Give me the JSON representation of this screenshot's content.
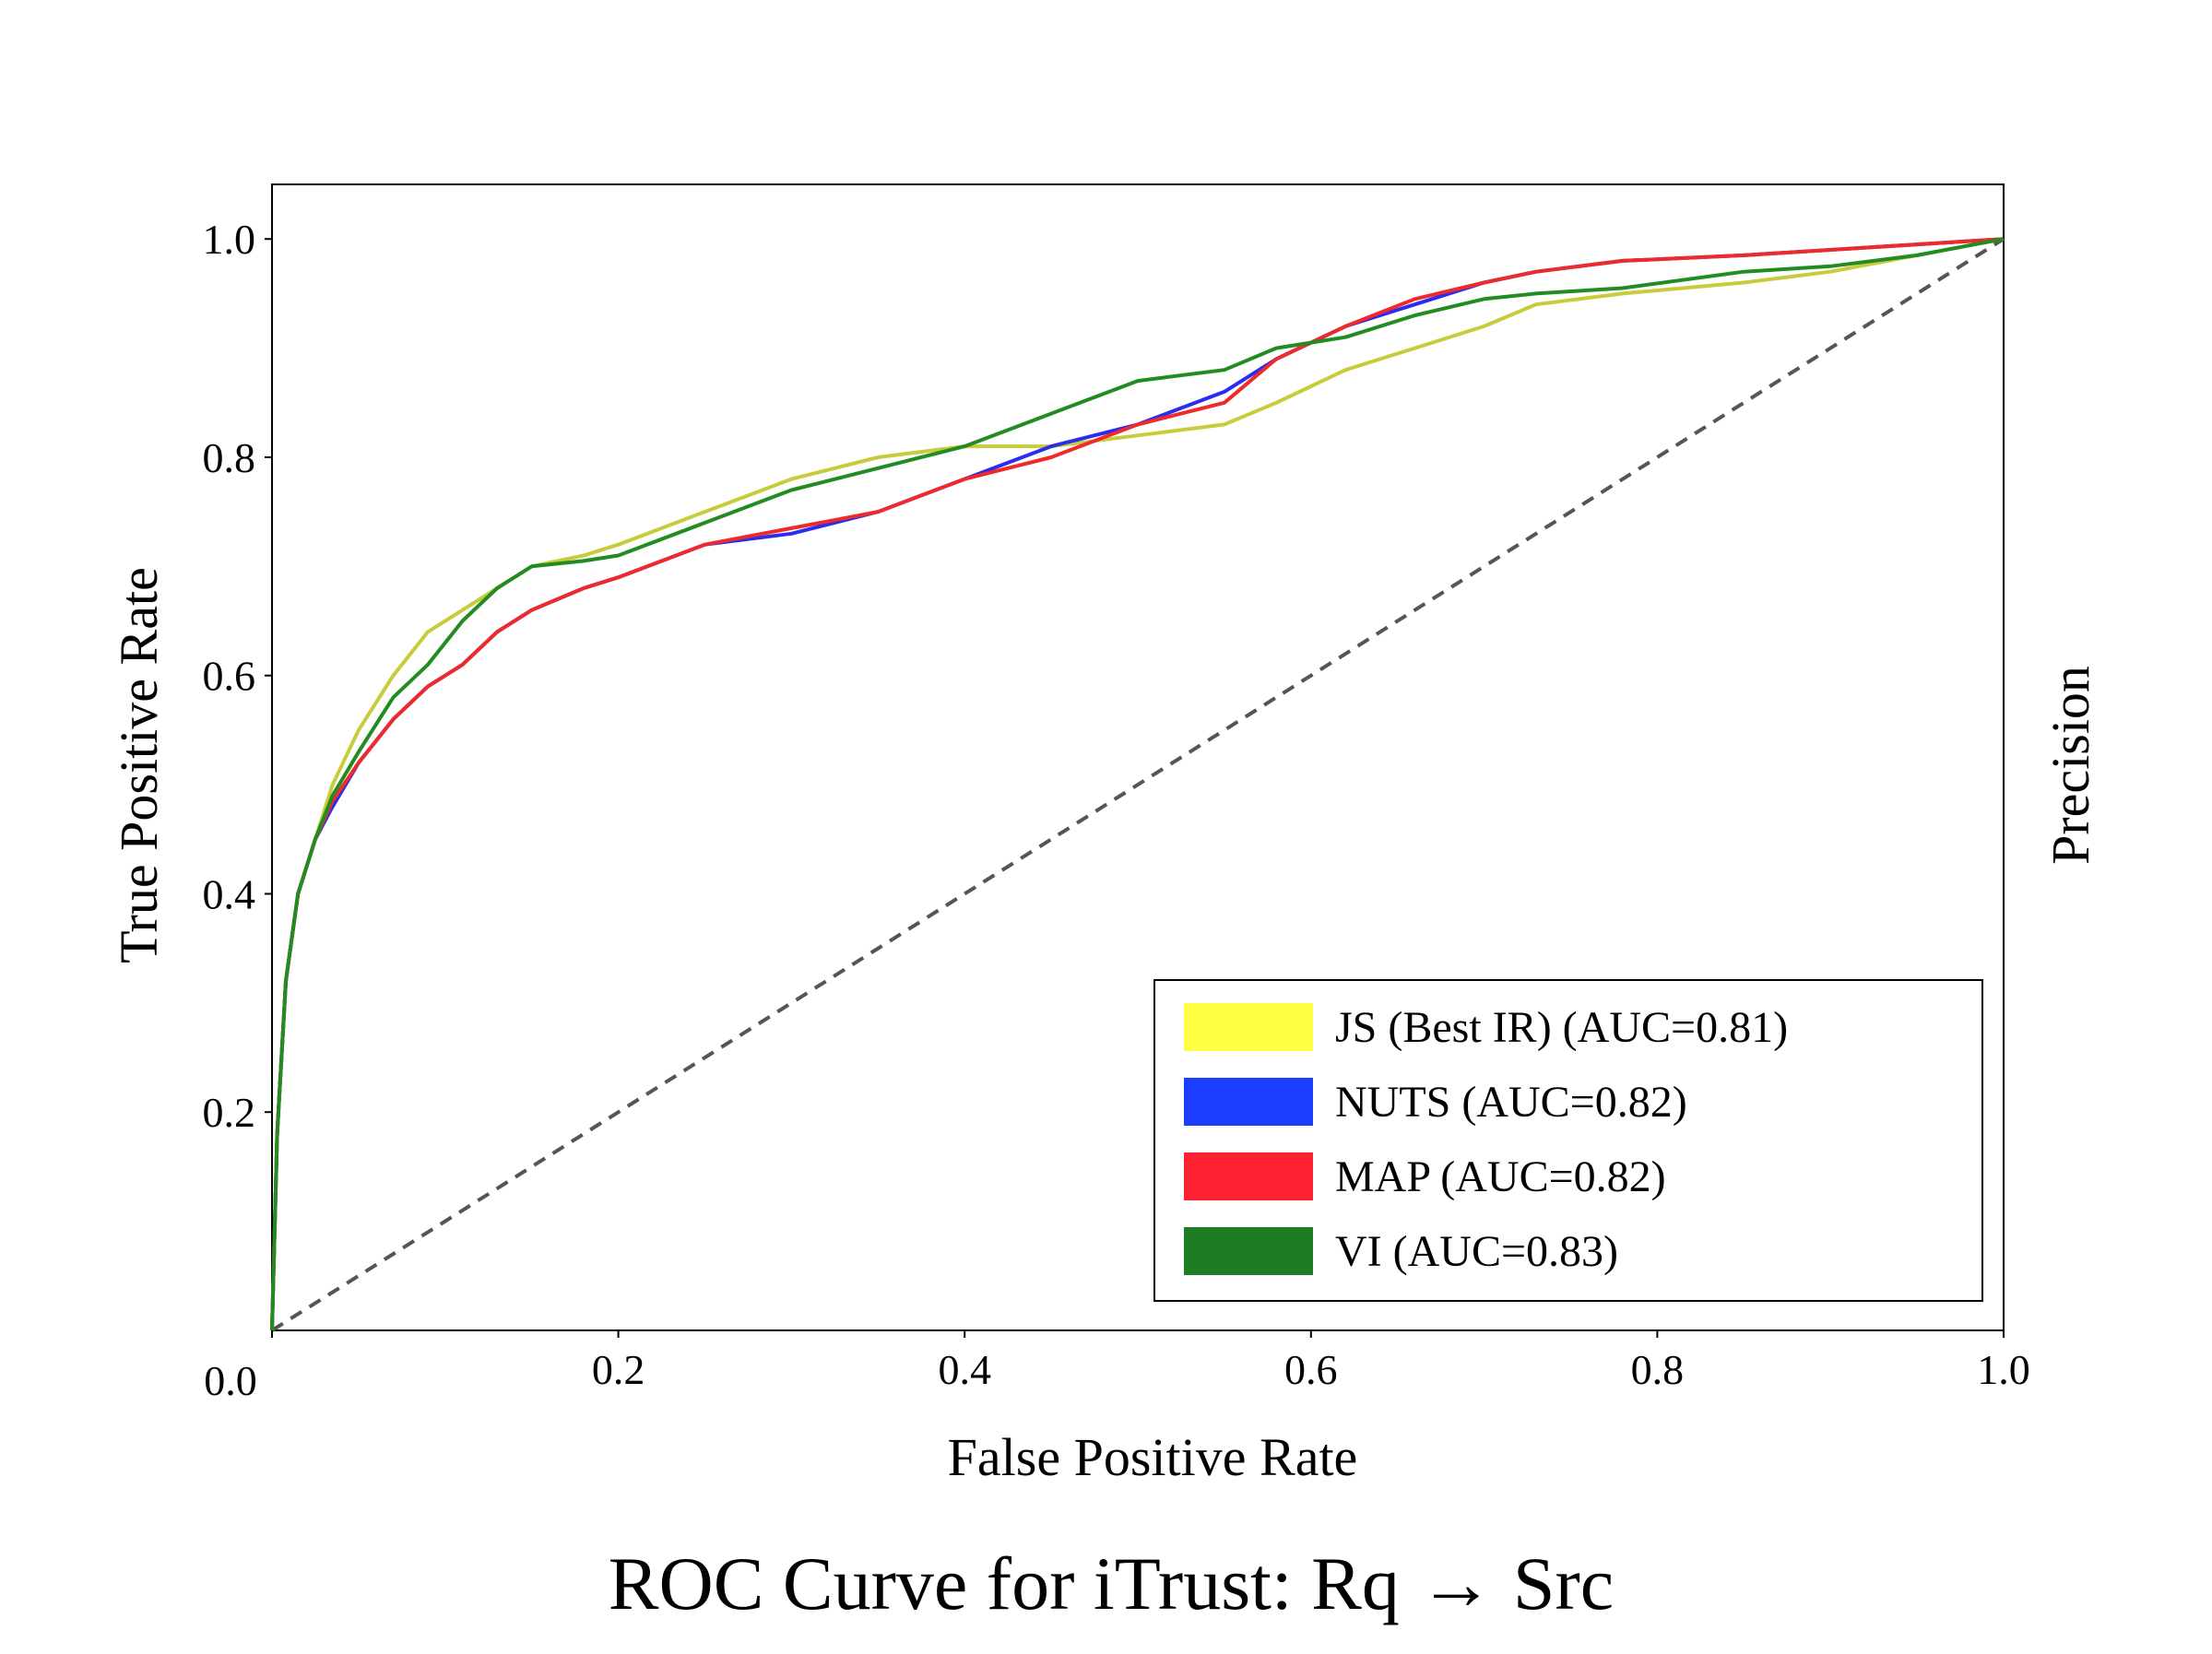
{
  "chart_data": {
    "type": "line",
    "title": "ROC Curve for iTrust: Rq → Src",
    "xlabel": "False Positive Rate",
    "ylabel": "True Positive Rate",
    "ylabel_right": "Precision",
    "xlim": [
      0,
      1
    ],
    "ylim": [
      0,
      1.05
    ],
    "x_ticks": [
      "0.0",
      "0.2",
      "0.4",
      "0.6",
      "0.8",
      "1.0"
    ],
    "y_ticks": [
      "0.2",
      "0.4",
      "0.6",
      "0.8",
      "1.0"
    ],
    "grid": false,
    "legend_position": "lower-right",
    "diagonal": {
      "x": [
        0,
        1
      ],
      "y": [
        0,
        1
      ],
      "color": "#555555",
      "style": "dashed"
    },
    "series": [
      {
        "name": "JS (Best IR) (AUC=0.81)",
        "color": "#c8cc3a",
        "legend_color": "#ffff44",
        "x": [
          0,
          0.003,
          0.008,
          0.015,
          0.025,
          0.035,
          0.05,
          0.07,
          0.09,
          0.11,
          0.13,
          0.15,
          0.18,
          0.2,
          0.25,
          0.3,
          0.35,
          0.4,
          0.45,
          0.5,
          0.55,
          0.58,
          0.62,
          0.66,
          0.7,
          0.73,
          0.78,
          0.85,
          0.9,
          0.95,
          1.0
        ],
        "y": [
          0,
          0.18,
          0.32,
          0.4,
          0.45,
          0.5,
          0.55,
          0.6,
          0.64,
          0.66,
          0.68,
          0.7,
          0.71,
          0.72,
          0.75,
          0.78,
          0.8,
          0.81,
          0.81,
          0.82,
          0.83,
          0.85,
          0.88,
          0.9,
          0.92,
          0.94,
          0.95,
          0.96,
          0.97,
          0.985,
          1.0
        ]
      },
      {
        "name": "NUTS (AUC=0.82)",
        "color": "#2a2df0",
        "legend_color": "#1a3dff",
        "x": [
          0,
          0.003,
          0.008,
          0.015,
          0.025,
          0.035,
          0.05,
          0.07,
          0.09,
          0.11,
          0.13,
          0.15,
          0.18,
          0.2,
          0.25,
          0.3,
          0.35,
          0.4,
          0.45,
          0.5,
          0.55,
          0.58,
          0.62,
          0.66,
          0.7,
          0.73,
          0.78,
          0.85,
          0.9,
          0.95,
          1.0
        ],
        "y": [
          0,
          0.18,
          0.32,
          0.4,
          0.45,
          0.48,
          0.52,
          0.56,
          0.59,
          0.61,
          0.64,
          0.66,
          0.68,
          0.69,
          0.72,
          0.73,
          0.75,
          0.78,
          0.81,
          0.83,
          0.86,
          0.89,
          0.92,
          0.94,
          0.96,
          0.97,
          0.98,
          0.985,
          0.99,
          0.995,
          1.0
        ]
      },
      {
        "name": "MAP (AUC=0.82)",
        "color": "#ee2a2a",
        "legend_color": "#ff2233",
        "x": [
          0,
          0.003,
          0.008,
          0.015,
          0.025,
          0.035,
          0.05,
          0.07,
          0.09,
          0.11,
          0.13,
          0.15,
          0.18,
          0.2,
          0.25,
          0.3,
          0.35,
          0.4,
          0.45,
          0.5,
          0.55,
          0.58,
          0.62,
          0.66,
          0.7,
          0.73,
          0.78,
          0.85,
          0.9,
          0.95,
          1.0
        ],
        "y": [
          0,
          0.18,
          0.32,
          0.4,
          0.45,
          0.485,
          0.52,
          0.56,
          0.59,
          0.61,
          0.64,
          0.66,
          0.68,
          0.69,
          0.72,
          0.735,
          0.75,
          0.78,
          0.8,
          0.83,
          0.85,
          0.89,
          0.92,
          0.945,
          0.96,
          0.97,
          0.98,
          0.985,
          0.99,
          0.995,
          1.0
        ]
      },
      {
        "name": "VI (AUC=0.83)",
        "color": "#228b22",
        "legend_color": "#1e7d22",
        "x": [
          0,
          0.003,
          0.008,
          0.015,
          0.025,
          0.035,
          0.05,
          0.07,
          0.09,
          0.11,
          0.13,
          0.15,
          0.18,
          0.2,
          0.25,
          0.3,
          0.35,
          0.4,
          0.45,
          0.5,
          0.55,
          0.58,
          0.62,
          0.66,
          0.7,
          0.73,
          0.78,
          0.85,
          0.9,
          0.95,
          1.0
        ],
        "y": [
          0,
          0.18,
          0.32,
          0.4,
          0.45,
          0.49,
          0.53,
          0.58,
          0.61,
          0.65,
          0.68,
          0.7,
          0.705,
          0.71,
          0.74,
          0.77,
          0.79,
          0.81,
          0.84,
          0.87,
          0.88,
          0.9,
          0.91,
          0.93,
          0.945,
          0.95,
          0.955,
          0.97,
          0.975,
          0.985,
          1.0
        ]
      }
    ]
  }
}
